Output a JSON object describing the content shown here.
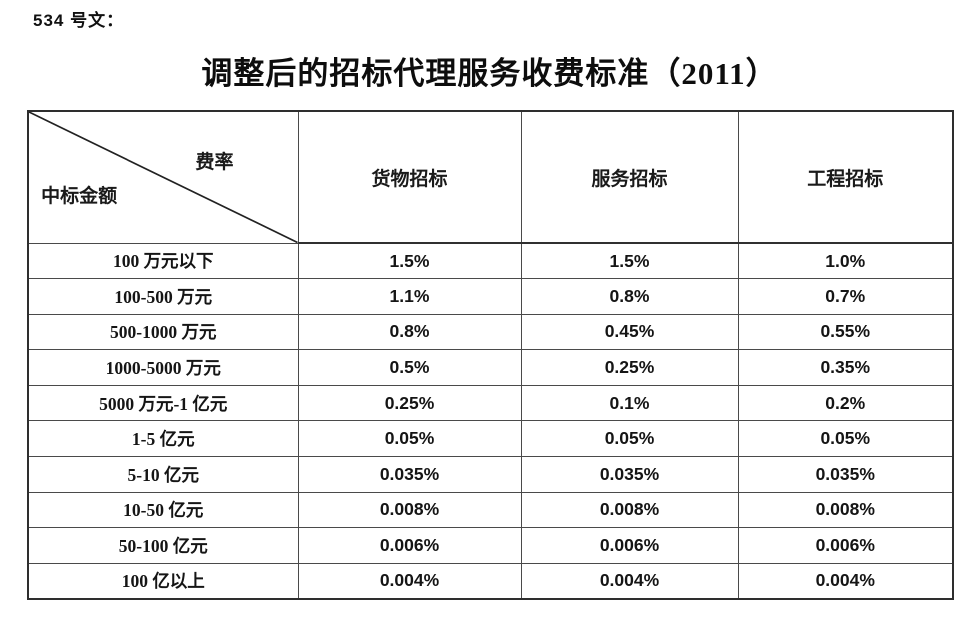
{
  "page": {
    "doc_label": "534 号文：",
    "title": "调整后的招标代理服务收费标准（2011）"
  },
  "colors": {
    "background": "#ffffff",
    "text": "#1a1a1a",
    "border": "#2e2e2e"
  },
  "table": {
    "corner": {
      "top_right_label": "费率",
      "bottom_left_label": "中标金额"
    },
    "columns": [
      "货物招标",
      "服务招标",
      "工程招标"
    ],
    "rows": [
      {
        "label": "100 万元以下",
        "values": [
          "1.5%",
          "1.5%",
          "1.0%"
        ]
      },
      {
        "label": "100-500 万元",
        "values": [
          "1.1%",
          "0.8%",
          "0.7%"
        ]
      },
      {
        "label": "500-1000 万元",
        "values": [
          "0.8%",
          "0.45%",
          "0.55%"
        ]
      },
      {
        "label": "1000-5000 万元",
        "values": [
          "0.5%",
          "0.25%",
          "0.35%"
        ]
      },
      {
        "label": "5000 万元-1 亿元",
        "values": [
          "0.25%",
          "0.1%",
          "0.2%"
        ]
      },
      {
        "label": "1-5 亿元",
        "values": [
          "0.05%",
          "0.05%",
          "0.05%"
        ]
      },
      {
        "label": "5-10 亿元",
        "values": [
          "0.035%",
          "0.035%",
          "0.035%"
        ]
      },
      {
        "label": "10-50 亿元",
        "values": [
          "0.008%",
          "0.008%",
          "0.008%"
        ]
      },
      {
        "label": "50-100 亿元",
        "values": [
          "0.006%",
          "0.006%",
          "0.006%"
        ]
      },
      {
        "label": "100 亿以上",
        "values": [
          "0.004%",
          "0.004%",
          "0.004%"
        ]
      }
    ]
  }
}
